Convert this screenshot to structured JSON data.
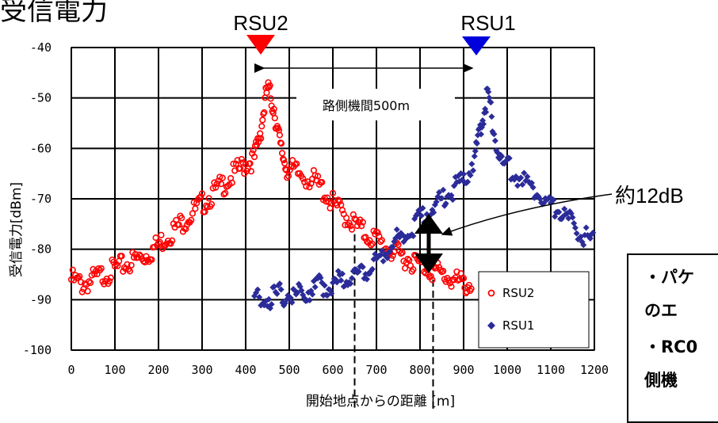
{
  "page_title": "受信電力",
  "chart_data": {
    "type": "scatter",
    "title": "",
    "xlabel": "開始地点からの距離 [m]",
    "ylabel": "受信電力[dBm]",
    "xlim": [
      0,
      1200
    ],
    "ylim": [
      -100,
      -40
    ],
    "x_ticks": [
      0,
      100,
      200,
      300,
      400,
      500,
      600,
      700,
      800,
      900,
      1000,
      1100,
      1200
    ],
    "x_tick_labels": [
      "0",
      "100",
      "200",
      "300",
      "400",
      "500",
      "600",
      "700",
      "800",
      "900",
      "1000",
      "1100",
      "1200"
    ],
    "y_ticks": [
      -40,
      -50,
      -60,
      -70,
      -80,
      -90,
      -100
    ],
    "y_tick_labels": [
      "-40",
      "-50",
      "-60",
      "-70",
      "-80",
      "-90",
      "-100"
    ],
    "grid": true,
    "legend_position": "bottom-right",
    "series": [
      {
        "name": "RSU2",
        "color": "#ff0000",
        "marker": "open-circle",
        "points": [
          [
            0,
            -86
          ],
          [
            25,
            -87
          ],
          [
            50,
            -86
          ],
          [
            75,
            -85
          ],
          [
            100,
            -84
          ],
          [
            125,
            -83
          ],
          [
            150,
            -82
          ],
          [
            175,
            -81
          ],
          [
            200,
            -79
          ],
          [
            225,
            -77
          ],
          [
            250,
            -75
          ],
          [
            275,
            -73
          ],
          [
            300,
            -71
          ],
          [
            325,
            -69
          ],
          [
            350,
            -67
          ],
          [
            375,
            -65
          ],
          [
            400,
            -63
          ],
          [
            420,
            -62
          ],
          [
            435,
            -56
          ],
          [
            450,
            -48
          ],
          [
            465,
            -52
          ],
          [
            480,
            -60
          ],
          [
            495,
            -64
          ],
          [
            520,
            -65
          ],
          [
            550,
            -66
          ],
          [
            575,
            -68
          ],
          [
            600,
            -71
          ],
          [
            625,
            -73
          ],
          [
            650,
            -75
          ],
          [
            675,
            -77
          ],
          [
            700,
            -78
          ],
          [
            725,
            -80
          ],
          [
            750,
            -81
          ],
          [
            775,
            -82
          ],
          [
            800,
            -83
          ],
          [
            825,
            -84
          ],
          [
            850,
            -85
          ],
          [
            875,
            -86
          ],
          [
            900,
            -87
          ],
          [
            920,
            -87
          ]
        ]
      },
      {
        "name": "RSU1",
        "color": "#2b2b99",
        "marker": "filled-diamond",
        "points": [
          [
            420,
            -90
          ],
          [
            450,
            -90
          ],
          [
            475,
            -89
          ],
          [
            500,
            -89
          ],
          [
            525,
            -89
          ],
          [
            550,
            -88
          ],
          [
            575,
            -87
          ],
          [
            600,
            -87
          ],
          [
            625,
            -86
          ],
          [
            650,
            -85
          ],
          [
            675,
            -84
          ],
          [
            700,
            -82
          ],
          [
            725,
            -80
          ],
          [
            750,
            -78
          ],
          [
            775,
            -76
          ],
          [
            800,
            -74
          ],
          [
            825,
            -72
          ],
          [
            850,
            -70
          ],
          [
            875,
            -68
          ],
          [
            900,
            -66
          ],
          [
            925,
            -62
          ],
          [
            940,
            -56
          ],
          [
            955,
            -49
          ],
          [
            970,
            -57
          ],
          [
            990,
            -63
          ],
          [
            1020,
            -65
          ],
          [
            1050,
            -67
          ],
          [
            1075,
            -69
          ],
          [
            1100,
            -71
          ],
          [
            1125,
            -73
          ],
          [
            1150,
            -75
          ],
          [
            1175,
            -77
          ],
          [
            1200,
            -79
          ]
        ]
      }
    ],
    "annotations": [
      {
        "text": "RSU2",
        "x": 450,
        "role": "peak-marker"
      },
      {
        "text": "RSU1",
        "x": 955,
        "role": "peak-marker"
      },
      {
        "text": "路側機間500m",
        "x_from": 450,
        "x_to": 955,
        "role": "distance"
      },
      {
        "text": "約12dB",
        "x": 830,
        "y_from": -76,
        "y_to": -87,
        "role": "level-difference"
      }
    ]
  },
  "note_box": {
    "lines": [
      "・パケ",
      "のエ",
      "・RC0",
      "側機"
    ]
  }
}
